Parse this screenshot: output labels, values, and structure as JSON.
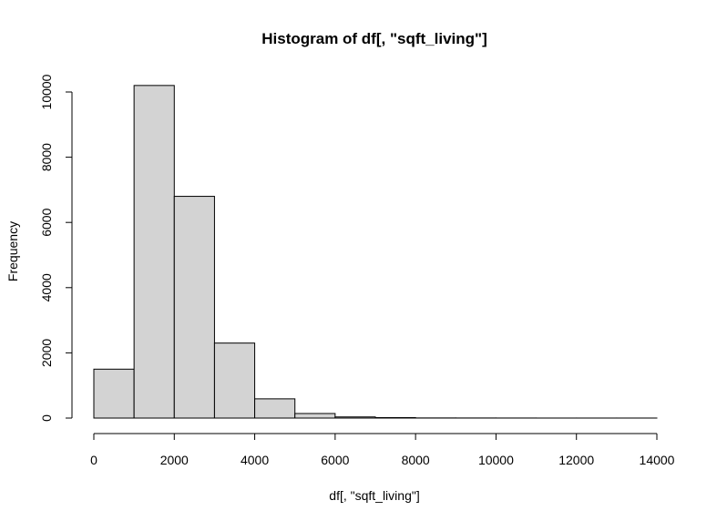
{
  "chart_data": {
    "type": "bar",
    "title": "Histogram of df[, \"sqft_living\"]",
    "xlabel": "df[, \"sqft_living\"]",
    "ylabel": "Frequency",
    "bin_width": 1000,
    "bins": [
      {
        "start": 0,
        "end": 1000,
        "count": 1500
      },
      {
        "start": 1000,
        "end": 2000,
        "count": 10200
      },
      {
        "start": 2000,
        "end": 3000,
        "count": 6800
      },
      {
        "start": 3000,
        "end": 4000,
        "count": 2300
      },
      {
        "start": 4000,
        "end": 5000,
        "count": 590
      },
      {
        "start": 5000,
        "end": 6000,
        "count": 140
      },
      {
        "start": 6000,
        "end": 7000,
        "count": 35
      },
      {
        "start": 7000,
        "end": 8000,
        "count": 15
      },
      {
        "start": 8000,
        "end": 9000,
        "count": 4
      },
      {
        "start": 9000,
        "end": 10000,
        "count": 3
      },
      {
        "start": 10000,
        "end": 11000,
        "count": 2
      },
      {
        "start": 11000,
        "end": 12000,
        "count": 1
      },
      {
        "start": 12000,
        "end": 13000,
        "count": 1
      },
      {
        "start": 13000,
        "end": 14000,
        "count": 1
      }
    ],
    "xlim": [
      0,
      14000
    ],
    "ylim": [
      0,
      10000
    ],
    "xticks": [
      0,
      2000,
      4000,
      6000,
      8000,
      10000,
      12000,
      14000
    ],
    "yticks": [
      0,
      2000,
      4000,
      6000,
      8000,
      10000
    ],
    "xtick_labels": [
      "0",
      "2000",
      "4000",
      "6000",
      "8000",
      "10000",
      "12000",
      "14000"
    ],
    "ytick_labels": [
      "0",
      "2000",
      "4000",
      "6000",
      "8000",
      "10000"
    ],
    "bar_fill": "#d3d3d3",
    "bar_stroke": "#000000",
    "grid": false
  }
}
